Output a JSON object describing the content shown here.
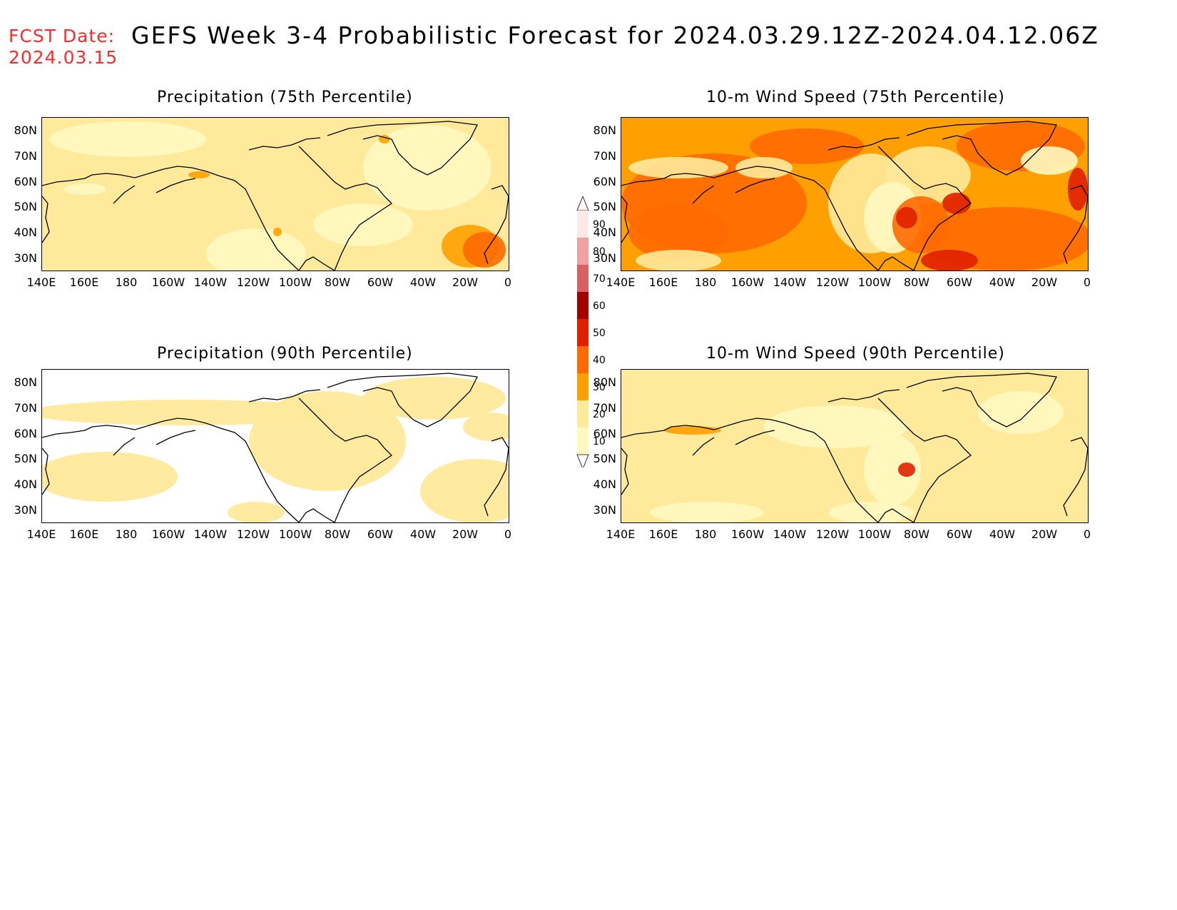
{
  "header": {
    "fcst_label": "FCST Date:",
    "fcst_date": "2024.03.15",
    "title": "GEFS Week 3-4 Probabilistic Forecast for 2024.03.29.12Z-2024.04.12.06Z"
  },
  "axes": {
    "lat_labels": [
      "80N",
      "70N",
      "60N",
      "50N",
      "40N",
      "30N"
    ],
    "lon_labels": [
      "140E",
      "160E",
      "180",
      "160W",
      "140W",
      "120W",
      "100W",
      "80W",
      "60W",
      "40W",
      "20W",
      "0"
    ]
  },
  "panels": [
    {
      "title": "Precipitation (75th Percentile)",
      "base": "#ffe99a",
      "dominant_level": 20
    },
    {
      "title": "10-m Wind Speed (75th Percentile)",
      "base": "#ffa000",
      "dominant_level": 30
    },
    {
      "title": "Precipitation (90th Percentile)",
      "base": "#ffffff",
      "dominant_level": 10
    },
    {
      "title": "10-m Wind Speed (90th Percentile)",
      "base": "#ffe99a",
      "dominant_level": 20
    }
  ],
  "colorbar": {
    "levels": [
      "90",
      "80",
      "70",
      "60",
      "50",
      "40",
      "30",
      "20",
      "10"
    ],
    "colors": [
      "#ffe8e8",
      "#f0a0a0",
      "#d86060",
      "#a00000",
      "#e02000",
      "#ff6a00",
      "#ffa000",
      "#ffe99a",
      "#fff8c0"
    ]
  }
}
